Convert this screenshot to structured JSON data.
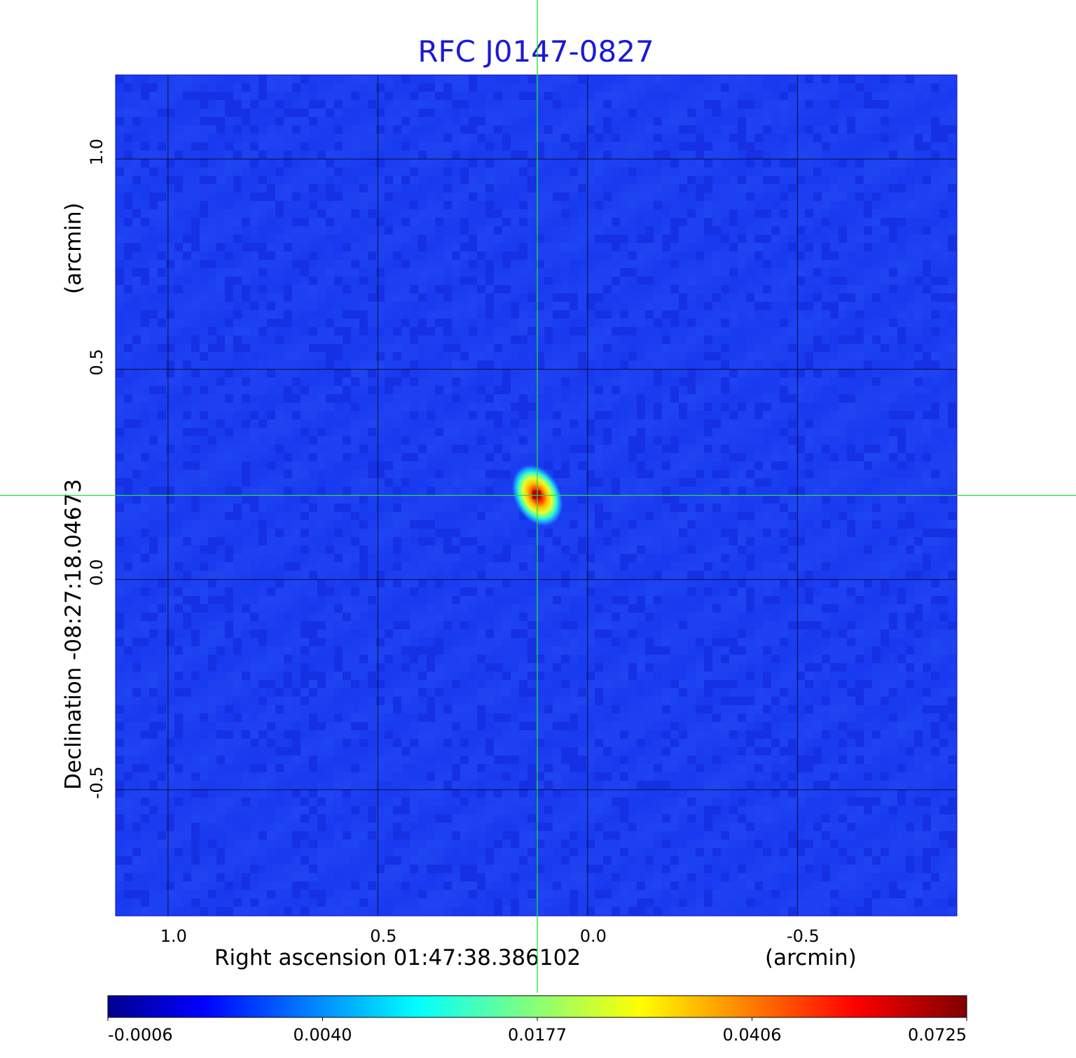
{
  "chart_data": {
    "type": "heatmap",
    "title": "RFC J0147-0827",
    "title_color": "#1a1ad6",
    "xlabel": "Right ascension  01:47:38.386102",
    "xunit": "(arcmin)",
    "ylabel": "Declination  -08:27:18.04673",
    "yunit": "(arcmin)",
    "xlim": [
      1.125,
      -0.88
    ],
    "ylim": [
      -0.8,
      1.2
    ],
    "x_ticks": [
      1.0,
      0.5,
      0.0,
      -0.5
    ],
    "x_tick_labels": [
      "1.0",
      "0.5",
      "0.0",
      "-0.5"
    ],
    "y_ticks": [
      1.0,
      0.5,
      0.0,
      -0.5
    ],
    "y_tick_labels": [
      "1.0",
      "0.5",
      "0.0",
      "-0.5"
    ],
    "grid": true,
    "crosshair": {
      "x": 0.12,
      "y": 0.2,
      "color": "#22dd44"
    },
    "source_peak": {
      "x": 0.12,
      "y": 0.2,
      "value": 0.0725
    },
    "colormap": "jet",
    "colorbar": {
      "min": -0.0006,
      "max": 0.0725,
      "tick_labels": [
        "-0.0006",
        "0.0040",
        "0.0177",
        "0.0406",
        "0.0725"
      ]
    }
  }
}
